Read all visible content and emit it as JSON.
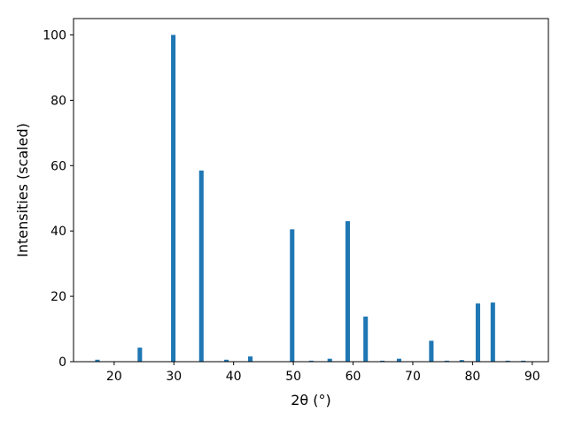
{
  "chart_data": {
    "type": "bar",
    "title": "",
    "xlabel": "2θ (°)",
    "ylabel": "Intensities (scaled)",
    "xlim": [
      13.2,
      92.7
    ],
    "ylim": [
      0,
      105
    ],
    "xticks": [
      20,
      30,
      40,
      50,
      60,
      70,
      80,
      90
    ],
    "yticks": [
      0,
      20,
      40,
      60,
      80,
      100
    ],
    "grid": false,
    "bar_color": "#1f77b4",
    "bar_width": 0.75,
    "x": [
      17.2,
      24.3,
      29.9,
      34.6,
      38.8,
      42.8,
      49.8,
      53.0,
      56.1,
      59.1,
      62.1,
      64.9,
      67.7,
      73.1,
      75.7,
      78.2,
      80.9,
      83.4,
      85.9,
      88.5
    ],
    "values": [
      0.6,
      4.3,
      100,
      58.5,
      0.6,
      1.6,
      40.5,
      0.3,
      0.9,
      43,
      13.8,
      0.3,
      0.9,
      6.4,
      0.3,
      0.5,
      17.8,
      18.1,
      0.3,
      0.3
    ]
  }
}
